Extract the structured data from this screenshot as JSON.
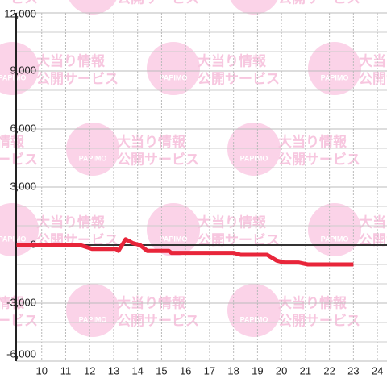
{
  "chart_data": {
    "type": "line",
    "watermark": {
      "logo": "PAPIMO",
      "line1": "大当り情報",
      "line2": "公開サービス"
    },
    "xlim": [
      8.933,
      24.4
    ],
    "xticks": [
      10,
      11,
      12,
      13,
      14,
      15,
      16,
      17,
      18,
      19,
      20,
      21,
      22,
      23,
      24
    ],
    "ylim": [
      -6000,
      12000
    ],
    "yticks": [
      {
        "value": -6000,
        "label": "-6,000"
      },
      {
        "value": -3000,
        "label": "-3,000"
      },
      0,
      {
        "value": 3000,
        "label": "3,000"
      },
      {
        "value": 6000,
        "label": "6,000"
      },
      {
        "value": 9000,
        "label": "9,000"
      },
      {
        "value": 12000,
        "label": "12,000"
      }
    ],
    "y_minor_ticks": [
      -5000,
      -4000,
      -2000,
      -1000,
      1000,
      2000,
      4000,
      5000,
      7000,
      8000,
      10000,
      11000
    ],
    "grid": true,
    "series": [
      {
        "color": "#e8253a",
        "x": [
          8.95,
          11.6,
          12.1,
          13.1,
          13.2,
          13.5,
          13.8,
          14.1,
          14.4,
          15.3,
          15.4,
          18.0,
          18.3,
          19.4,
          19.8,
          20.1,
          20.7,
          21.1,
          23.0
        ],
        "values": [
          0,
          0,
          -200,
          -200,
          -300,
          300,
          100,
          0,
          -300,
          -300,
          -400,
          -400,
          -500,
          -500,
          -800,
          -900,
          -900,
          -1000,
          -1000
        ]
      }
    ]
  }
}
